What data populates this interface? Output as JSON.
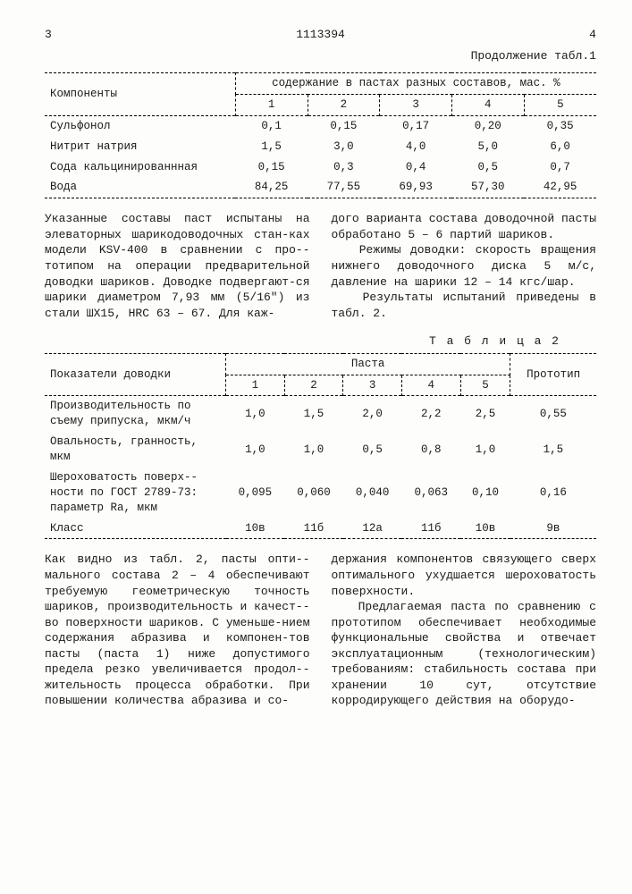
{
  "hdr": {
    "leftPage": "3",
    "docNum": "1113394",
    "rightPage": "4",
    "contLabel": "Продолжение табл.1"
  },
  "t1": {
    "compLabel": "Компоненты",
    "bandLabel": "содержание в пастах разных составов, мас. %",
    "cols": [
      "1",
      "2",
      "3",
      "4",
      "5"
    ],
    "rows": [
      {
        "name": "Сульфонол",
        "v": [
          "0,1",
          "0,15",
          "0,17",
          "0,20",
          "0,35"
        ]
      },
      {
        "name": "Нитрит натрия",
        "v": [
          "1,5",
          "3,0",
          "4,0",
          "5,0",
          "6,0"
        ]
      },
      {
        "name": "Сода кальцинированнная",
        "v": [
          "0,15",
          "0,3",
          "0,4",
          "0,5",
          "0,7"
        ]
      },
      {
        "name": "Вода",
        "v": [
          "84,25",
          "77,55",
          "69,93",
          "57,30",
          "42,95"
        ]
      }
    ]
  },
  "midL": "Указанные составы паст испытаны на элеваторных шарикодоводочных стан-­ках модели KSV-400 в сравнении с про-­тотипом на операции предварительной доводки шариков. Доводке подвергают-­ся шарики диаметром 7,93 мм (5/16\") из стали ШХ15, HRC 63 – 67. Для каж-",
  "midR": "дого варианта состава доводочной пасты обработано 5 – 6 партий шариков.\n   Режимы доводки: скорость вращения нижнего доводочного диска 5 м/с, давление на шарики 12 – 14 кгс/шар.\n   Результаты испытаний приведены в табл. 2.",
  "t2": {
    "caption": "Т а б л и ц а 2",
    "rowLabel": "Показатели доводки",
    "bandLabel": "Паста",
    "cols": [
      "1",
      "2",
      "3",
      "4",
      "5",
      "Прототип"
    ],
    "rows": [
      {
        "name": "Производительность по съему припуска, мкм/ч",
        "v": [
          "1,0",
          "1,5",
          "2,0",
          "2,2",
          "2,5",
          "0,55"
        ]
      },
      {
        "name": "Овальность, гранность, мкм",
        "v": [
          "1,0",
          "1,0",
          "0,5",
          "0,8",
          "1,0",
          "1,5"
        ]
      },
      {
        "name": "Шероховатость поверх-­ности по ГОСТ 2789-73: параметр Ra, мкм",
        "v": [
          "0,095",
          "0,060",
          "0,040",
          "0,063",
          "0,10",
          "0,16"
        ]
      },
      {
        "name": "Класс",
        "v": [
          "10в",
          "11б",
          "12а",
          "11б",
          "10в",
          "9в"
        ]
      }
    ]
  },
  "botL": "Как видно из табл. 2, пасты опти-­мального состава 2 – 4 обеспечивают требуемую геометрическую точность шариков, производительность и качест-­во поверхности шариков. С уменьше-­нием содержания абразива и компонен-­тов пасты (паста 1) ниже допустимого предела резко увеличивается продол-­жительность процесса обработки. При повышении количества абразива и со-",
  "botR": "держания компонентов связующего сверх оптимального ухудшается шероховатость поверхности.\n   Предлагаемая паста по сравнению с прототипом обеспечивает необходимые функциональные свойства и отвечает эксплуатационным (технологическим) требованиям: стабильность состава при хранении 10 сут, отсутствие корродирующего действия на оборудо-"
}
